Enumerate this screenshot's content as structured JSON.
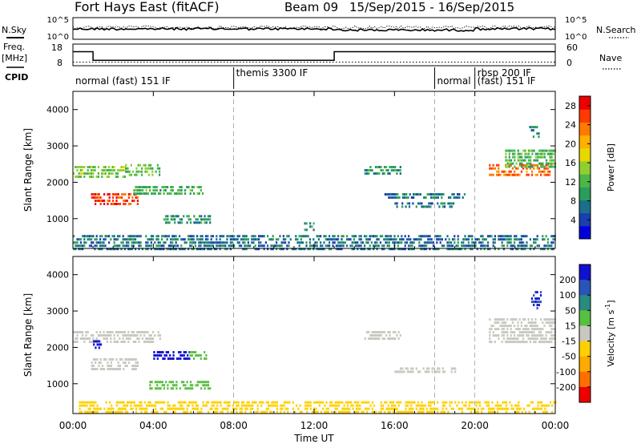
{
  "header": {
    "station": "Fort Hays East (fitACF)",
    "beam": "Beam 09",
    "date_range": "15/Sep/2015 - 16/Sep/2015"
  },
  "summary": {
    "nsky_label": "N.Sky",
    "nsearch_label": "N.Search",
    "noise_ticks_left": [
      "10^5",
      "10^0"
    ],
    "noise_ticks_right": [
      "10^5",
      "10^0"
    ],
    "freq_label": "Freq.",
    "freq_unit": "[MHz]",
    "freq_ticks": [
      "18",
      "8"
    ],
    "nave_label": "Nave",
    "nave_ticks": [
      "60",
      "0"
    ],
    "cpid_label": "CPID",
    "freq_steps": [
      {
        "t0": 0.0,
        "t1": 1.0,
        "mhz": 14.5
      },
      {
        "t0": 1.0,
        "t1": 13.0,
        "mhz": 10.5
      },
      {
        "t0": 13.0,
        "t1": 24.0,
        "mhz": 14.5
      }
    ],
    "nave_level": 10,
    "modes": [
      {
        "start": 0.0,
        "label": "normal (fast) 151 IF",
        "row": 1
      },
      {
        "start": 8.0,
        "label": "themis 3300 IF",
        "row": 0
      },
      {
        "start": 18.0,
        "label": "normal",
        "row": 1
      },
      {
        "start": 20.0,
        "label": "rbsp 200 IF",
        "row": 0
      },
      {
        "start": 20.0,
        "label": "(fast) 151 IF",
        "row": 1
      }
    ]
  },
  "chart_data": [
    {
      "type": "heatmap",
      "name": "power",
      "xlabel": "Time UT",
      "ylabel": "Slant Range [km]",
      "xlim": [
        0,
        24
      ],
      "ylim": [
        180,
        4500
      ],
      "xticks": [
        {
          "value": 0,
          "label": "00:00"
        },
        {
          "value": 4,
          "label": "04:00"
        },
        {
          "value": 8,
          "label": "08:00"
        },
        {
          "value": 12,
          "label": "12:00"
        },
        {
          "value": 16,
          "label": "16:00"
        },
        {
          "value": 20,
          "label": "20:00"
        },
        {
          "value": 24,
          "label": "00:00"
        }
      ],
      "yticks": [
        1000,
        2000,
        3000,
        4000
      ],
      "grid_times": [
        8,
        18,
        20
      ],
      "colorbar": {
        "label": "Power [dB]",
        "ticks": [
          4,
          8,
          12,
          16,
          20,
          24,
          28
        ],
        "range": [
          0,
          30
        ],
        "colors": [
          "#0000dd",
          "#1a3fb0",
          "#1a6f8a",
          "#2a9d5a",
          "#4cb648",
          "#8fcf30",
          "#e8d800",
          "#ffb000",
          "#ff7a00",
          "#ff3a00",
          "#ee0000"
        ]
      },
      "regions": [
        {
          "t0": 0.0,
          "t1": 2.6,
          "r0": 2100,
          "r1": 2450,
          "value": 14
        },
        {
          "t0": 0.9,
          "t1": 3.2,
          "r0": 1350,
          "r1": 1700,
          "value": 26
        },
        {
          "t0": 2.6,
          "t1": 4.3,
          "r0": 2150,
          "r1": 2500,
          "value": 13
        },
        {
          "t0": 3.0,
          "t1": 6.5,
          "r0": 1650,
          "r1": 1900,
          "value": 11
        },
        {
          "t0": 4.5,
          "t1": 6.8,
          "r0": 900,
          "r1": 1100,
          "value": 9
        },
        {
          "t0": 11.5,
          "t1": 12.0,
          "r0": 700,
          "r1": 900,
          "value": 10
        },
        {
          "t0": 14.5,
          "t1": 16.3,
          "r0": 2250,
          "r1": 2450,
          "value": 10
        },
        {
          "t0": 15.5,
          "t1": 19.5,
          "r0": 1550,
          "r1": 1700,
          "value": 7
        },
        {
          "t0": 16.0,
          "t1": 19.0,
          "r0": 1300,
          "r1": 1450,
          "value": 7
        },
        {
          "t0": 20.7,
          "t1": 23.8,
          "r0": 2150,
          "r1": 2500,
          "value": 24
        },
        {
          "t0": 21.5,
          "t1": 24.0,
          "r0": 2450,
          "r1": 2900,
          "value": 12
        },
        {
          "t0": 22.7,
          "t1": 23.3,
          "r0": 3200,
          "r1": 3550,
          "value": 8
        },
        {
          "t0": 0.0,
          "t1": 24.0,
          "r0": 180,
          "r1": 550,
          "value": 7
        }
      ]
    },
    {
      "type": "heatmap",
      "name": "velocity",
      "xlabel": "Time UT",
      "ylabel": "Slant Range [km]",
      "xlim": [
        0,
        24
      ],
      "ylim": [
        180,
        4500
      ],
      "xticks": [
        {
          "value": 0,
          "label": "00:00"
        },
        {
          "value": 4,
          "label": "04:00"
        },
        {
          "value": 8,
          "label": "08:00"
        },
        {
          "value": 12,
          "label": "12:00"
        },
        {
          "value": 16,
          "label": "16:00"
        },
        {
          "value": 20,
          "label": "20:00"
        },
        {
          "value": 24,
          "label": "00:00"
        }
      ],
      "yticks": [
        1000,
        2000,
        3000,
        4000
      ],
      "grid_times": [
        8,
        18,
        20
      ],
      "colorbar": {
        "label": "Velocity [m s",
        "label_sup": "-1",
        "label_tail": "]",
        "tick_labels": [
          "200",
          "100",
          "50",
          "15",
          "-15",
          "-50",
          "-100",
          "-200"
        ],
        "bands": [
          "#1010d0",
          "#2a55b8",
          "#2a8a80",
          "#58c040",
          "#c8c8c0",
          "#ffd000",
          "#ffaa00",
          "#ff7000",
          "#ee0000"
        ]
      },
      "regions": [
        {
          "t0": 0.0,
          "t1": 4.3,
          "r0": 2100,
          "r1": 2450,
          "value": 0
        },
        {
          "t0": 0.9,
          "t1": 3.2,
          "r0": 1350,
          "r1": 1700,
          "value": 0
        },
        {
          "t0": 1.0,
          "t1": 1.4,
          "r0": 1950,
          "r1": 2200,
          "value": 220
        },
        {
          "t0": 4.0,
          "t1": 5.8,
          "r0": 1650,
          "r1": 1900,
          "value": 220
        },
        {
          "t0": 5.8,
          "t1": 6.6,
          "r0": 1650,
          "r1": 1900,
          "value": 40
        },
        {
          "t0": 3.8,
          "t1": 6.8,
          "r0": 880,
          "r1": 1080,
          "value": 40
        },
        {
          "t0": 0.3,
          "t1": 24.0,
          "r0": 180,
          "r1": 520,
          "value": -40
        },
        {
          "t0": 14.5,
          "t1": 16.3,
          "r0": 2250,
          "r1": 2450,
          "value": 0
        },
        {
          "t0": 16.0,
          "t1": 19.0,
          "r0": 1300,
          "r1": 1450,
          "value": 0
        },
        {
          "t0": 20.7,
          "t1": 24.0,
          "r0": 2150,
          "r1": 2800,
          "value": 0
        },
        {
          "t0": 22.8,
          "t1": 23.3,
          "r0": 3100,
          "r1": 3550,
          "value": 200
        }
      ]
    }
  ]
}
